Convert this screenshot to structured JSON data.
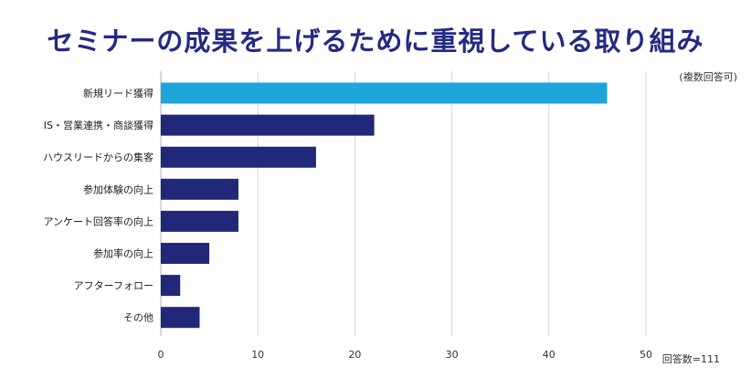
{
  "title": "セミナーの成果を上げるために重視している取り組み",
  "note_top": "(複数回答可)",
  "note_bottom": "回答数=111",
  "colors": {
    "title": "#242a82",
    "bar": "#212779",
    "highlight": "#1ea6db",
    "grid": "#d6d6d6"
  },
  "chart_data": {
    "type": "bar",
    "orientation": "horizontal",
    "categories": [
      "新規リード獲得",
      "IS・営業連携・商談獲得",
      "ハウスリードからの集客",
      "参加体験の向上",
      "アンケート回答率の向上",
      "参加率の向上",
      "アフターフォロー",
      "その他"
    ],
    "values": [
      46,
      22,
      16,
      8,
      8,
      5,
      2,
      4
    ],
    "highlight_index": 0,
    "xlim": [
      0,
      50
    ],
    "xticks": [
      0,
      10,
      20,
      30,
      40,
      50
    ],
    "grid": true
  }
}
